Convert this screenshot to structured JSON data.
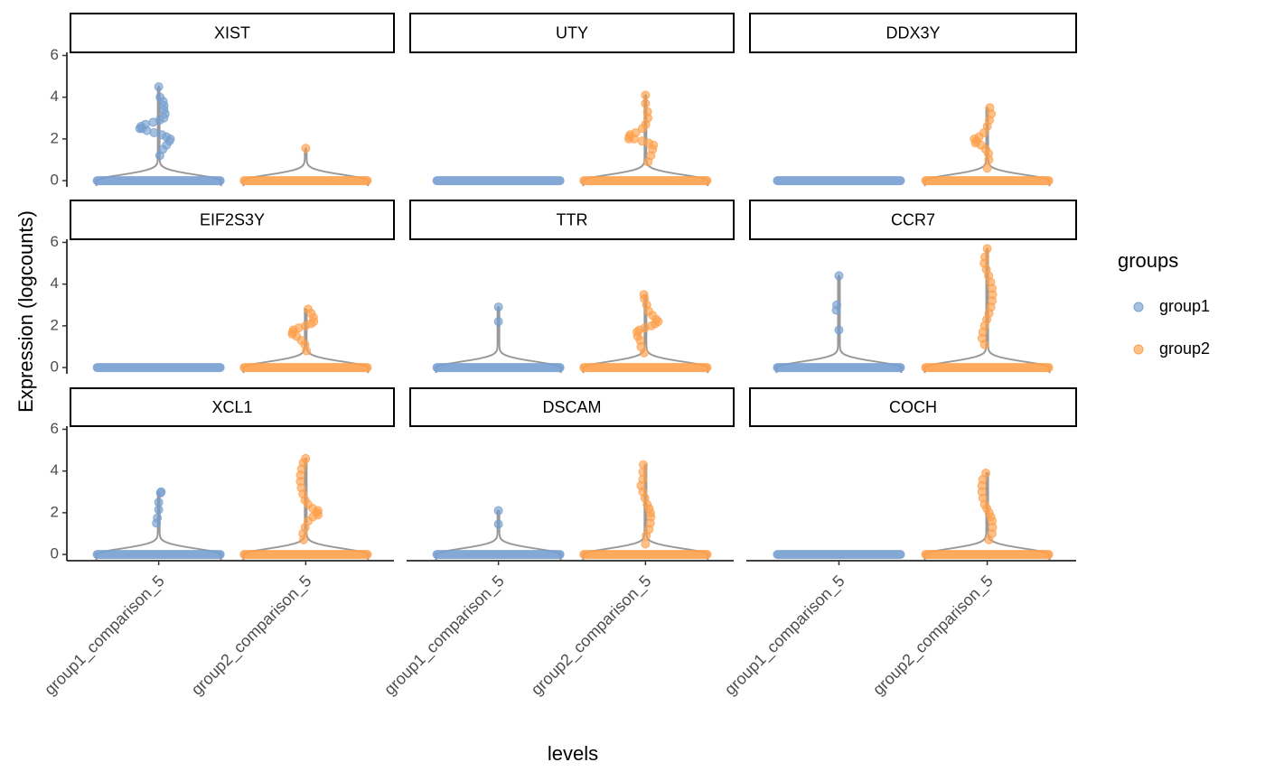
{
  "figure": {
    "xlabel": "levels",
    "ylabel": "Expression (logcounts)",
    "legend_title": "groups"
  },
  "chart_data": [
    {
      "type": "violin",
      "title": "XIST",
      "ylim": [
        -0.3,
        6.15
      ],
      "yticks": [
        0,
        2,
        4,
        6
      ],
      "series": [
        {
          "name": "group1",
          "color": "#779fd0",
          "values": [
            0,
            1.2,
            1.5,
            1.7,
            1.9,
            2.0,
            2.1,
            2.2,
            2.3,
            2.4,
            2.5,
            2.5,
            2.6,
            2.7,
            2.8,
            2.9,
            3.0,
            3.2,
            3.4,
            3.6,
            3.8,
            4.0,
            4.5
          ]
        },
        {
          "name": "group2",
          "color": "#ffa04c",
          "values": [
            0,
            1.55
          ]
        }
      ]
    },
    {
      "type": "violin",
      "title": "UTY",
      "ylim": [
        -0.3,
        6.15
      ],
      "series": [
        {
          "color": "#779fd0",
          "values": [
            0
          ]
        },
        {
          "color": "#ffa04c",
          "values": [
            0,
            0.9,
            1.2,
            1.5,
            1.7,
            1.8,
            1.9,
            2.0,
            2.0,
            2.1,
            2.2,
            2.3,
            2.5,
            2.7,
            3.0,
            3.3,
            3.7,
            4.1
          ]
        }
      ]
    },
    {
      "type": "violin",
      "title": "DDX3Y",
      "ylim": [
        -0.3,
        6.15
      ],
      "series": [
        {
          "color": "#779fd0",
          "values": [
            0
          ]
        },
        {
          "color": "#ffa04c",
          "values": [
            0,
            0.6,
            1.0,
            1.3,
            1.5,
            1.7,
            1.8,
            1.9,
            2.0,
            2.1,
            2.3,
            2.6,
            2.9,
            3.2,
            3.5
          ]
        }
      ]
    },
    {
      "type": "violin",
      "title": "EIF2S3Y",
      "ylim": [
        -0.3,
        6.15
      ],
      "yticks": [
        0,
        2,
        4,
        6
      ],
      "series": [
        {
          "color": "#779fd0",
          "values": [
            0
          ]
        },
        {
          "color": "#ffa04c",
          "values": [
            0,
            0.8,
            1.1,
            1.3,
            1.5,
            1.6,
            1.7,
            1.8,
            1.9,
            2.0,
            2.1,
            2.2,
            2.4,
            2.6,
            2.8
          ]
        }
      ]
    },
    {
      "type": "violin",
      "title": "TTR",
      "ylim": [
        -0.3,
        6.15
      ],
      "series": [
        {
          "color": "#779fd0",
          "values": [
            0,
            2.2,
            2.9
          ]
        },
        {
          "color": "#ffa04c",
          "values": [
            0,
            0.7,
            1.0,
            1.3,
            1.5,
            1.7,
            1.8,
            1.9,
            2.0,
            2.1,
            2.2,
            2.3,
            2.5,
            2.7,
            3.0,
            3.3,
            3.5
          ]
        }
      ]
    },
    {
      "type": "violin",
      "title": "CCR7",
      "ylim": [
        -0.3,
        6.15
      ],
      "series": [
        {
          "color": "#779fd0",
          "values": [
            0,
            1.8,
            2.75,
            3.0,
            4.4
          ]
        },
        {
          "color": "#ffa04c",
          "values": [
            0,
            1.1,
            1.4,
            1.7,
            2.0,
            2.3,
            2.6,
            2.9,
            3.2,
            3.5,
            3.8,
            4.1,
            4.4,
            4.7,
            5.0,
            5.3,
            5.7
          ]
        }
      ]
    },
    {
      "type": "violin",
      "title": "XCL1",
      "ylim": [
        -0.3,
        6.15
      ],
      "yticks": [
        0,
        2,
        4,
        6
      ],
      "categories": [
        "group1_comparison_5",
        "group2_comparison_5"
      ],
      "series": [
        {
          "color": "#779fd0",
          "values": [
            0,
            1.5,
            1.75,
            2.15,
            2.5,
            2.95,
            3.0
          ]
        },
        {
          "color": "#ffa04c",
          "values": [
            0,
            0.7,
            1.0,
            1.3,
            1.6,
            1.8,
            1.9,
            2.0,
            2.1,
            2.2,
            2.4,
            2.6,
            2.9,
            3.2,
            3.5,
            3.8,
            4.1,
            4.4,
            4.6
          ]
        }
      ]
    },
    {
      "type": "violin",
      "title": "DSCAM",
      "ylim": [
        -0.3,
        6.15
      ],
      "categories": [
        "group1_comparison_5",
        "group2_comparison_5"
      ],
      "series": [
        {
          "color": "#779fd0",
          "values": [
            0,
            1.45,
            2.1
          ]
        },
        {
          "color": "#ffa04c",
          "values": [
            0,
            0.5,
            0.9,
            1.2,
            1.5,
            1.8,
            2.0,
            2.2,
            2.4,
            2.7,
            3.0,
            3.3,
            3.6,
            3.95,
            4.3
          ]
        }
      ]
    },
    {
      "type": "violin",
      "title": "COCH",
      "ylim": [
        -0.3,
        6.15
      ],
      "categories": [
        "group1_comparison_5",
        "group2_comparison_5"
      ],
      "series": [
        {
          "color": "#779fd0",
          "values": [
            0
          ]
        },
        {
          "color": "#ffa04c",
          "values": [
            0,
            0.7,
            1.0,
            1.3,
            1.6,
            1.8,
            2.0,
            2.2,
            2.4,
            2.7,
            3.0,
            3.3,
            3.6,
            3.9
          ]
        }
      ]
    }
  ]
}
